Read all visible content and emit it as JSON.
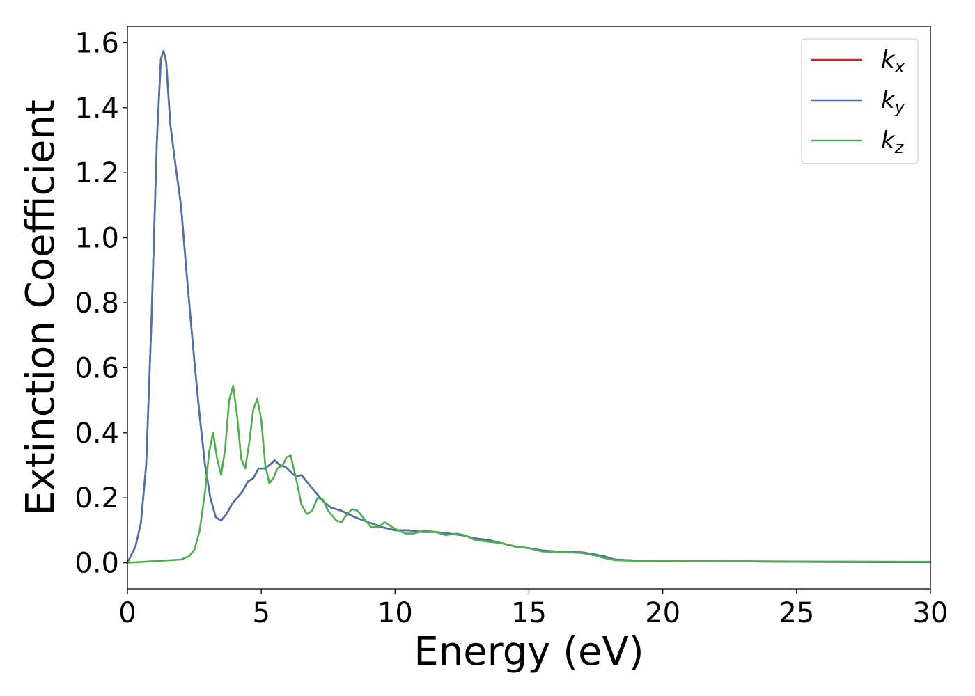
{
  "chart_data": {
    "type": "line",
    "xlabel": "Energy (eV)",
    "ylabel": "Extinction Coefficient",
    "xlim": [
      0,
      30
    ],
    "ylim": [
      -0.08,
      1.65
    ],
    "xticks": [
      0,
      5,
      10,
      15,
      20,
      25,
      30
    ],
    "xtick_labels": [
      "0",
      "5",
      "10",
      "15",
      "20",
      "25",
      "30"
    ],
    "yticks": [
      0.0,
      0.2,
      0.4,
      0.6,
      0.8,
      1.0,
      1.2,
      1.4,
      1.6
    ],
    "ytick_labels": [
      "0.0",
      "0.2",
      "0.4",
      "0.6",
      "0.8",
      "1.0",
      "1.2",
      "1.4",
      "1.6"
    ],
    "grid": false,
    "legend_position": "top-right",
    "series": [
      {
        "name": "kx",
        "label_base": "k",
        "label_sub": "x",
        "color": "#e41a1c",
        "points": [
          [
            0,
            0.0
          ],
          [
            0.3,
            0.05
          ],
          [
            0.5,
            0.12
          ],
          [
            0.7,
            0.3
          ],
          [
            0.9,
            0.75
          ],
          [
            1.1,
            1.3
          ],
          [
            1.25,
            1.55
          ],
          [
            1.35,
            1.575
          ],
          [
            1.45,
            1.54
          ],
          [
            1.6,
            1.35
          ],
          [
            1.8,
            1.22
          ],
          [
            2.0,
            1.1
          ],
          [
            2.2,
            0.9
          ],
          [
            2.35,
            0.76
          ],
          [
            2.5,
            0.62
          ],
          [
            2.7,
            0.45
          ],
          [
            2.9,
            0.3
          ],
          [
            3.1,
            0.2
          ],
          [
            3.3,
            0.14
          ],
          [
            3.5,
            0.13
          ],
          [
            3.7,
            0.15
          ],
          [
            3.9,
            0.18
          ],
          [
            4.1,
            0.2
          ],
          [
            4.3,
            0.22
          ],
          [
            4.5,
            0.25
          ],
          [
            4.7,
            0.26
          ],
          [
            4.9,
            0.29
          ],
          [
            5.1,
            0.29
          ],
          [
            5.3,
            0.3
          ],
          [
            5.5,
            0.315
          ],
          [
            5.7,
            0.3
          ],
          [
            5.9,
            0.295
          ],
          [
            6.1,
            0.28
          ],
          [
            6.3,
            0.265
          ],
          [
            6.5,
            0.27
          ],
          [
            6.7,
            0.25
          ],
          [
            7.0,
            0.22
          ],
          [
            7.3,
            0.19
          ],
          [
            7.6,
            0.17
          ],
          [
            8.0,
            0.16
          ],
          [
            8.5,
            0.14
          ],
          [
            9.0,
            0.125
          ],
          [
            9.5,
            0.11
          ],
          [
            10.0,
            0.1
          ],
          [
            10.5,
            0.1
          ],
          [
            11.0,
            0.095
          ],
          [
            11.5,
            0.095
          ],
          [
            12.0,
            0.09
          ],
          [
            12.5,
            0.085
          ],
          [
            13.0,
            0.075
          ],
          [
            13.5,
            0.07
          ],
          [
            14.0,
            0.06
          ],
          [
            14.5,
            0.05
          ],
          [
            15.0,
            0.045
          ],
          [
            15.5,
            0.038
          ],
          [
            16.0,
            0.035
          ],
          [
            16.5,
            0.033
          ],
          [
            17.0,
            0.032
          ],
          [
            17.5,
            0.025
          ],
          [
            17.8,
            0.02
          ],
          [
            18.2,
            0.01
          ],
          [
            19.0,
            0.007
          ],
          [
            20.0,
            0.006
          ],
          [
            22.0,
            0.005
          ],
          [
            25.0,
            0.003
          ],
          [
            30.0,
            0.002
          ]
        ]
      },
      {
        "name": "ky",
        "label_base": "k",
        "label_sub": "y",
        "color": "#4a72b0",
        "points": [
          [
            0,
            0.0
          ],
          [
            0.3,
            0.05
          ],
          [
            0.5,
            0.12
          ],
          [
            0.7,
            0.3
          ],
          [
            0.9,
            0.75
          ],
          [
            1.1,
            1.3
          ],
          [
            1.25,
            1.55
          ],
          [
            1.35,
            1.575
          ],
          [
            1.45,
            1.54
          ],
          [
            1.6,
            1.35
          ],
          [
            1.8,
            1.22
          ],
          [
            2.0,
            1.1
          ],
          [
            2.2,
            0.9
          ],
          [
            2.35,
            0.76
          ],
          [
            2.5,
            0.62
          ],
          [
            2.7,
            0.45
          ],
          [
            2.9,
            0.3
          ],
          [
            3.1,
            0.2
          ],
          [
            3.3,
            0.14
          ],
          [
            3.5,
            0.13
          ],
          [
            3.7,
            0.15
          ],
          [
            3.9,
            0.18
          ],
          [
            4.1,
            0.2
          ],
          [
            4.3,
            0.22
          ],
          [
            4.5,
            0.25
          ],
          [
            4.7,
            0.26
          ],
          [
            4.9,
            0.29
          ],
          [
            5.1,
            0.29
          ],
          [
            5.3,
            0.3
          ],
          [
            5.5,
            0.315
          ],
          [
            5.7,
            0.3
          ],
          [
            5.9,
            0.295
          ],
          [
            6.1,
            0.28
          ],
          [
            6.3,
            0.265
          ],
          [
            6.5,
            0.27
          ],
          [
            6.7,
            0.25
          ],
          [
            7.0,
            0.22
          ],
          [
            7.3,
            0.19
          ],
          [
            7.6,
            0.17
          ],
          [
            8.0,
            0.16
          ],
          [
            8.5,
            0.14
          ],
          [
            9.0,
            0.125
          ],
          [
            9.5,
            0.11
          ],
          [
            10.0,
            0.1
          ],
          [
            10.5,
            0.1
          ],
          [
            11.0,
            0.095
          ],
          [
            11.5,
            0.095
          ],
          [
            12.0,
            0.09
          ],
          [
            12.5,
            0.085
          ],
          [
            13.0,
            0.075
          ],
          [
            13.5,
            0.07
          ],
          [
            14.0,
            0.06
          ],
          [
            14.5,
            0.05
          ],
          [
            15.0,
            0.045
          ],
          [
            15.5,
            0.038
          ],
          [
            16.0,
            0.035
          ],
          [
            16.5,
            0.033
          ],
          [
            17.0,
            0.032
          ],
          [
            17.5,
            0.025
          ],
          [
            17.8,
            0.02
          ],
          [
            18.2,
            0.01
          ],
          [
            19.0,
            0.007
          ],
          [
            20.0,
            0.006
          ],
          [
            22.0,
            0.005
          ],
          [
            25.0,
            0.003
          ],
          [
            30.0,
            0.002
          ]
        ]
      },
      {
        "name": "kz",
        "label_base": "k",
        "label_sub": "z",
        "color": "#4daf4a",
        "points": [
          [
            0,
            0.0
          ],
          [
            1.0,
            0.005
          ],
          [
            2.0,
            0.01
          ],
          [
            2.3,
            0.02
          ],
          [
            2.5,
            0.04
          ],
          [
            2.7,
            0.1
          ],
          [
            2.9,
            0.22
          ],
          [
            3.05,
            0.34
          ],
          [
            3.2,
            0.4
          ],
          [
            3.35,
            0.32
          ],
          [
            3.5,
            0.27
          ],
          [
            3.65,
            0.35
          ],
          [
            3.8,
            0.5
          ],
          [
            3.95,
            0.545
          ],
          [
            4.1,
            0.45
          ],
          [
            4.25,
            0.32
          ],
          [
            4.4,
            0.29
          ],
          [
            4.55,
            0.37
          ],
          [
            4.7,
            0.47
          ],
          [
            4.85,
            0.505
          ],
          [
            5.0,
            0.44
          ],
          [
            5.15,
            0.3
          ],
          [
            5.3,
            0.245
          ],
          [
            5.45,
            0.26
          ],
          [
            5.6,
            0.29
          ],
          [
            5.8,
            0.3
          ],
          [
            5.95,
            0.325
          ],
          [
            6.1,
            0.33
          ],
          [
            6.3,
            0.26
          ],
          [
            6.5,
            0.18
          ],
          [
            6.7,
            0.15
          ],
          [
            6.9,
            0.16
          ],
          [
            7.1,
            0.2
          ],
          [
            7.3,
            0.195
          ],
          [
            7.5,
            0.16
          ],
          [
            7.8,
            0.13
          ],
          [
            8.0,
            0.125
          ],
          [
            8.2,
            0.15
          ],
          [
            8.4,
            0.165
          ],
          [
            8.6,
            0.16
          ],
          [
            8.8,
            0.14
          ],
          [
            9.1,
            0.11
          ],
          [
            9.4,
            0.11
          ],
          [
            9.6,
            0.125
          ],
          [
            9.8,
            0.115
          ],
          [
            10.1,
            0.1
          ],
          [
            10.4,
            0.09
          ],
          [
            10.7,
            0.09
          ],
          [
            11.1,
            0.1
          ],
          [
            11.5,
            0.095
          ],
          [
            11.9,
            0.085
          ],
          [
            12.3,
            0.09
          ],
          [
            12.6,
            0.085
          ],
          [
            13.0,
            0.07
          ],
          [
            13.5,
            0.065
          ],
          [
            14.0,
            0.06
          ],
          [
            14.5,
            0.05
          ],
          [
            15.0,
            0.045
          ],
          [
            15.5,
            0.035
          ],
          [
            16.0,
            0.033
          ],
          [
            16.5,
            0.032
          ],
          [
            17.0,
            0.03
          ],
          [
            17.5,
            0.022
          ],
          [
            17.8,
            0.015
          ],
          [
            18.2,
            0.008
          ],
          [
            19.0,
            0.006
          ],
          [
            20.0,
            0.007
          ],
          [
            21.0,
            0.005
          ],
          [
            23.0,
            0.005
          ],
          [
            25.0,
            0.004
          ],
          [
            30.0,
            0.003
          ]
        ]
      }
    ]
  }
}
